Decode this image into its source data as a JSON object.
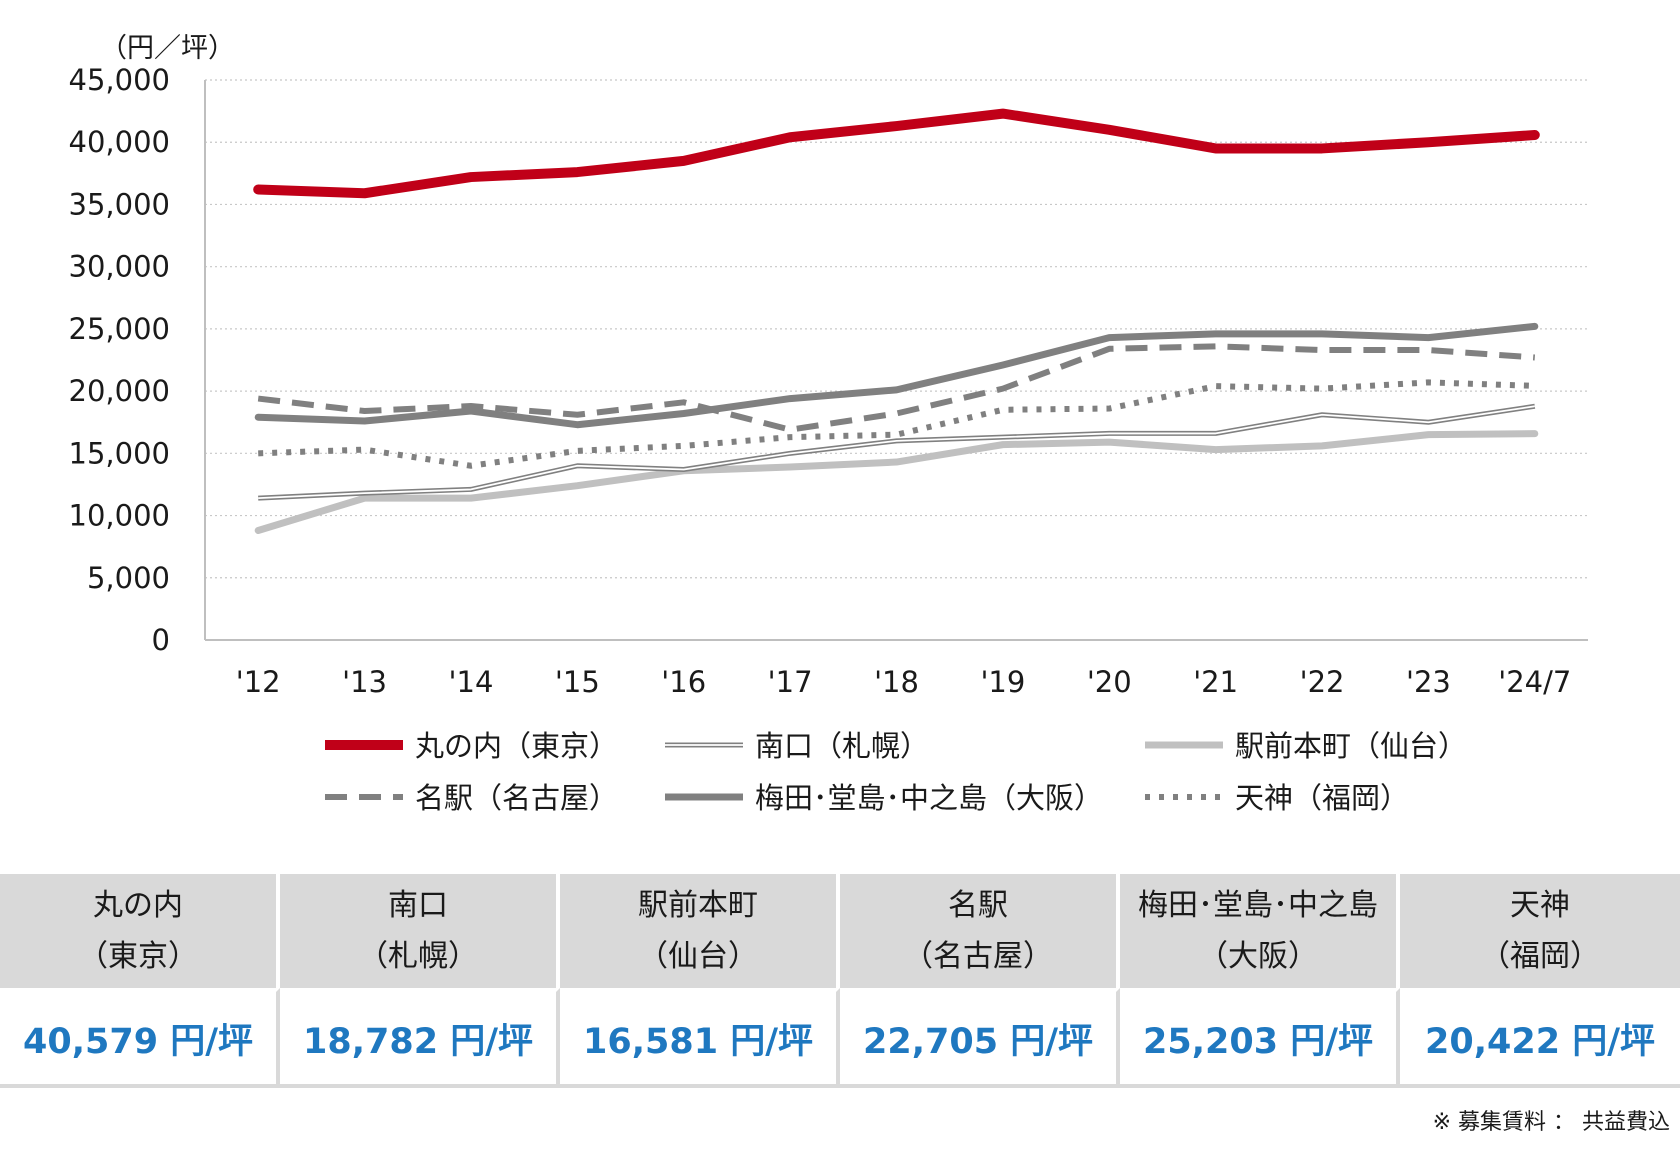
{
  "chart_data": {
    "type": "line",
    "title": "",
    "unit_label": "（円／坪）",
    "xlabel": "",
    "ylabel": "",
    "ylim": [
      0,
      45000
    ],
    "yticks": [
      0,
      5000,
      10000,
      15000,
      20000,
      25000,
      30000,
      35000,
      40000,
      45000
    ],
    "ytick_labels": [
      "0",
      "5,000",
      "10,000",
      "15,000",
      "20,000",
      "25,000",
      "30,000",
      "35,000",
      "40,000",
      "45,000"
    ],
    "categories": [
      "'12",
      "'13",
      "'14",
      "'15",
      "'16",
      "'17",
      "'18",
      "'19",
      "'20",
      "'21",
      "'22",
      "'23",
      "'24/7"
    ],
    "grid": true,
    "legend_position": "bottom",
    "series": [
      {
        "name": "丸の内（東京）",
        "style": "solid-thick",
        "color": "#c00018",
        "values": [
          36200,
          35900,
          37200,
          37600,
          38500,
          40400,
          41300,
          42300,
          41000,
          39500,
          39500,
          40000,
          40579
        ]
      },
      {
        "name": "南口（札幌）",
        "style": "double",
        "color": "#808080",
        "values": [
          11400,
          11800,
          12100,
          14000,
          13700,
          15000,
          16000,
          16300,
          16600,
          16600,
          18100,
          17500,
          18782
        ]
      },
      {
        "name": "駅前本町（仙台）",
        "style": "solid-light",
        "color": "#c0c0c0",
        "values": [
          8800,
          11400,
          11400,
          12400,
          13600,
          13900,
          14300,
          15700,
          15900,
          15300,
          15600,
          16500,
          16581
        ]
      },
      {
        "name": "名駅（名古屋）",
        "style": "dashed",
        "color": "#808080",
        "values": [
          19400,
          18400,
          18800,
          18100,
          19100,
          16900,
          18200,
          20200,
          23400,
          23600,
          23300,
          23300,
          22705
        ]
      },
      {
        "name": "梅田･堂島･中之島（大阪）",
        "style": "solid-medium",
        "color": "#808080",
        "values": [
          17900,
          17600,
          18400,
          17300,
          18200,
          19400,
          20100,
          22100,
          24300,
          24600,
          24600,
          24300,
          25203
        ]
      },
      {
        "name": "天神（福岡）",
        "style": "dotted",
        "color": "#808080",
        "values": [
          15000,
          15300,
          14000,
          15200,
          15600,
          16300,
          16500,
          18500,
          18600,
          20400,
          20200,
          20700,
          20422
        ]
      }
    ]
  },
  "table": {
    "headers": [
      {
        "line1": "丸の内",
        "line2": "（東京）"
      },
      {
        "line1": "南口",
        "line2": "（札幌）"
      },
      {
        "line1": "駅前本町",
        "line2": "（仙台）"
      },
      {
        "line1": "名駅",
        "line2": "（名古屋）"
      },
      {
        "line1": "梅田･堂島･中之島",
        "line2": "（大阪）"
      },
      {
        "line1": "天神",
        "line2": "（福岡）"
      }
    ],
    "values": [
      "40,579 円/坪",
      "18,782 円/坪",
      "16,581 円/坪",
      "22,705 円/坪",
      "25,203 円/坪",
      "20,422 円/坪"
    ]
  },
  "footnote": "※ 募集賃料 ： 共益費込",
  "colors": {
    "accent_red": "#c00018",
    "value_blue": "#1f78c0",
    "header_gray": "#d9d9d9"
  }
}
